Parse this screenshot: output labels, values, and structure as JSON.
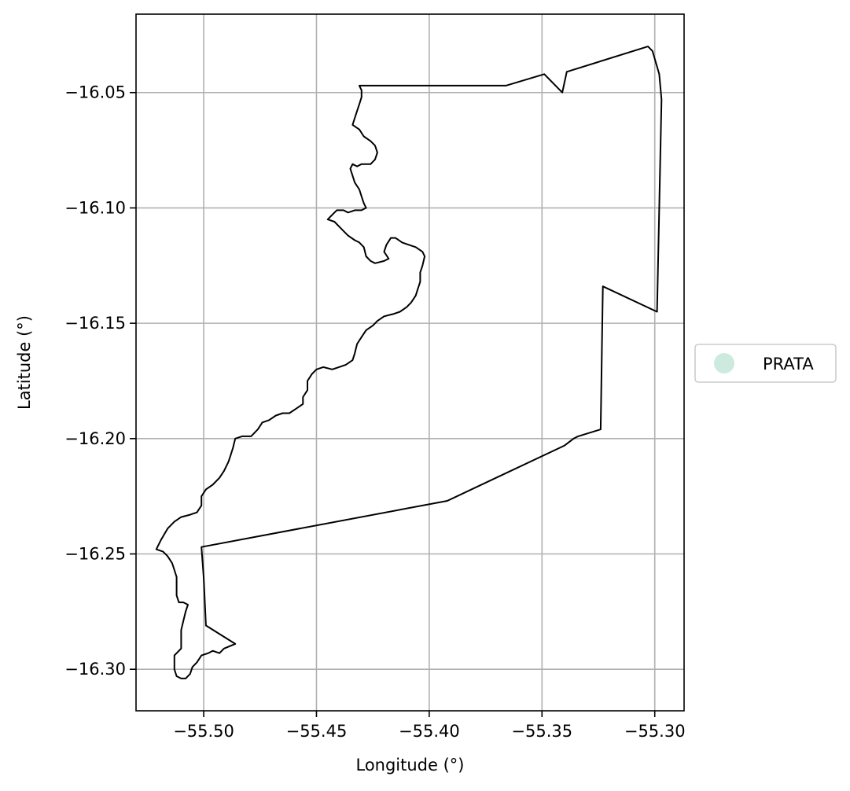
{
  "chart_data": {
    "type": "map",
    "xlabel": "Longitude (°)",
    "ylabel": "Latitude (°)",
    "xlim": [
      -55.53,
      -55.287
    ],
    "ylim": [
      -16.318,
      -16.016
    ],
    "grid": true,
    "xticks": [
      {
        "value": -55.5,
        "label": "−55.50"
      },
      {
        "value": -55.45,
        "label": "−55.45"
      },
      {
        "value": -55.4,
        "label": "−55.40"
      },
      {
        "value": -55.35,
        "label": "−55.35"
      },
      {
        "value": -55.3,
        "label": "−55.30"
      }
    ],
    "yticks": [
      {
        "value": -16.05,
        "label": "−16.05"
      },
      {
        "value": -16.1,
        "label": "−16.10"
      },
      {
        "value": -16.15,
        "label": "−16.15"
      },
      {
        "value": -16.2,
        "label": "−16.20"
      },
      {
        "value": -16.25,
        "label": "−16.25"
      },
      {
        "value": -16.3,
        "label": "−16.30"
      }
    ],
    "legend": {
      "placement": "right",
      "entries": [
        {
          "label": "PRATA",
          "color": "#cdeade"
        }
      ]
    },
    "region": {
      "name": "PRATA",
      "fill": "none",
      "stroke": "#000000",
      "boundary": [
        [
          -55.366,
          -16.047
        ],
        [
          -55.349,
          -16.042
        ],
        [
          -55.341,
          -16.05
        ],
        [
          -55.339,
          -16.041
        ],
        [
          -55.303,
          -16.03
        ],
        [
          -55.301,
          -16.032
        ],
        [
          -55.298,
          -16.042
        ],
        [
          -55.297,
          -16.053
        ],
        [
          -55.298,
          -16.1
        ],
        [
          -55.299,
          -16.145
        ],
        [
          -55.323,
          -16.134
        ],
        [
          -55.324,
          -16.196
        ],
        [
          -55.334,
          -16.199
        ],
        [
          -55.336,
          -16.2
        ],
        [
          -55.34,
          -16.203
        ],
        [
          -55.392,
          -16.227
        ],
        [
          -55.501,
          -16.247
        ],
        [
          -55.5,
          -16.26
        ],
        [
          -55.499,
          -16.281
        ],
        [
          -55.486,
          -16.289
        ],
        [
          -55.491,
          -16.291
        ],
        [
          -55.493,
          -16.293
        ],
        [
          -55.496,
          -16.292
        ],
        [
          -55.498,
          -16.293
        ],
        [
          -55.501,
          -16.294
        ],
        [
          -55.503,
          -16.297
        ],
        [
          -55.505,
          -16.299
        ],
        [
          -55.506,
          -16.302
        ],
        [
          -55.508,
          -16.304
        ],
        [
          -55.51,
          -16.304
        ],
        [
          -55.512,
          -16.303
        ],
        [
          -55.513,
          -16.3
        ],
        [
          -55.513,
          -16.297
        ],
        [
          -55.513,
          -16.294
        ],
        [
          -55.51,
          -16.291
        ],
        [
          -55.51,
          -16.287
        ],
        [
          -55.51,
          -16.283
        ],
        [
          -55.509,
          -16.279
        ],
        [
          -55.508,
          -16.275
        ],
        [
          -55.507,
          -16.272
        ],
        [
          -55.509,
          -16.271
        ],
        [
          -55.511,
          -16.271
        ],
        [
          -55.512,
          -16.268
        ],
        [
          -55.512,
          -16.264
        ],
        [
          -55.512,
          -16.26
        ],
        [
          -55.513,
          -16.257
        ],
        [
          -55.514,
          -16.254
        ],
        [
          -55.516,
          -16.251
        ],
        [
          -55.518,
          -16.249
        ],
        [
          -55.521,
          -16.248
        ],
        [
          -55.519,
          -16.244
        ],
        [
          -55.516,
          -16.239
        ],
        [
          -55.513,
          -16.236
        ],
        [
          -55.51,
          -16.234
        ],
        [
          -55.506,
          -16.233
        ],
        [
          -55.503,
          -16.232
        ],
        [
          -55.501,
          -16.229
        ],
        [
          -55.501,
          -16.225
        ],
        [
          -55.499,
          -16.222
        ],
        [
          -55.496,
          -16.22
        ],
        [
          -55.493,
          -16.217
        ],
        [
          -55.491,
          -16.214
        ],
        [
          -55.489,
          -16.21
        ],
        [
          -55.488,
          -16.207
        ],
        [
          -55.487,
          -16.204
        ],
        [
          -55.486,
          -16.2
        ],
        [
          -55.483,
          -16.199
        ],
        [
          -55.479,
          -16.199
        ],
        [
          -55.476,
          -16.196
        ],
        [
          -55.474,
          -16.193
        ],
        [
          -55.471,
          -16.192
        ],
        [
          -55.468,
          -16.19
        ],
        [
          -55.465,
          -16.189
        ],
        [
          -55.462,
          -16.189
        ],
        [
          -55.459,
          -16.187
        ],
        [
          -55.456,
          -16.185
        ],
        [
          -55.456,
          -16.182
        ],
        [
          -55.454,
          -16.179
        ],
        [
          -55.454,
          -16.175
        ],
        [
          -55.452,
          -16.172
        ],
        [
          -55.45,
          -16.17
        ],
        [
          -55.447,
          -16.169
        ],
        [
          -55.443,
          -16.17
        ],
        [
          -55.44,
          -16.169
        ],
        [
          -55.437,
          -16.168
        ],
        [
          -55.434,
          -16.166
        ],
        [
          -55.433,
          -16.163
        ],
        [
          -55.432,
          -16.159
        ],
        [
          -55.43,
          -16.156
        ],
        [
          -55.428,
          -16.153
        ],
        [
          -55.425,
          -16.151
        ],
        [
          -55.423,
          -16.149
        ],
        [
          -55.42,
          -16.147
        ],
        [
          -55.416,
          -16.146
        ],
        [
          -55.413,
          -16.145
        ],
        [
          -55.41,
          -16.143
        ],
        [
          -55.408,
          -16.141
        ],
        [
          -55.406,
          -16.138
        ],
        [
          -55.405,
          -16.135
        ],
        [
          -55.404,
          -16.132
        ],
        [
          -55.404,
          -16.128
        ],
        [
          -55.403,
          -16.125
        ],
        [
          -55.402,
          -16.121
        ],
        [
          -55.403,
          -16.119
        ],
        [
          -55.406,
          -16.117
        ],
        [
          -55.409,
          -16.116
        ],
        [
          -55.412,
          -16.115
        ],
        [
          -55.415,
          -16.113
        ],
        [
          -55.417,
          -16.113
        ],
        [
          -55.419,
          -16.116
        ],
        [
          -55.42,
          -16.119
        ],
        [
          -55.418,
          -16.122
        ],
        [
          -55.42,
          -16.123
        ],
        [
          -55.424,
          -16.124
        ],
        [
          -55.426,
          -16.123
        ],
        [
          -55.428,
          -16.121
        ],
        [
          -55.429,
          -16.117
        ],
        [
          -55.431,
          -16.115
        ],
        [
          -55.433,
          -16.114
        ],
        [
          -55.436,
          -16.112
        ],
        [
          -55.438,
          -16.11
        ],
        [
          -55.44,
          -16.108
        ],
        [
          -55.442,
          -16.106
        ],
        [
          -55.445,
          -16.105
        ],
        [
          -55.443,
          -16.103
        ],
        [
          -55.441,
          -16.101
        ],
        [
          -55.438,
          -16.101
        ],
        [
          -55.436,
          -16.102
        ],
        [
          -55.433,
          -16.101
        ],
        [
          -55.43,
          -16.101
        ],
        [
          -55.428,
          -16.1
        ],
        [
          -55.429,
          -16.098
        ],
        [
          -55.43,
          -16.095
        ],
        [
          -55.431,
          -16.092
        ],
        [
          -55.433,
          -16.089
        ],
        [
          -55.434,
          -16.086
        ],
        [
          -55.435,
          -16.083
        ],
        [
          -55.434,
          -16.081
        ],
        [
          -55.432,
          -16.082
        ],
        [
          -55.43,
          -16.081
        ],
        [
          -55.426,
          -16.081
        ],
        [
          -55.424,
          -16.079
        ],
        [
          -55.423,
          -16.076
        ],
        [
          -55.424,
          -16.073
        ],
        [
          -55.426,
          -16.071
        ],
        [
          -55.429,
          -16.069
        ],
        [
          -55.431,
          -16.066
        ],
        [
          -55.434,
          -16.064
        ],
        [
          -55.433,
          -16.061
        ],
        [
          -55.432,
          -16.058
        ],
        [
          -55.431,
          -16.055
        ],
        [
          -55.43,
          -16.052
        ],
        [
          -55.43,
          -16.049
        ],
        [
          -55.431,
          -16.047
        ],
        [
          -55.366,
          -16.047
        ]
      ]
    }
  }
}
